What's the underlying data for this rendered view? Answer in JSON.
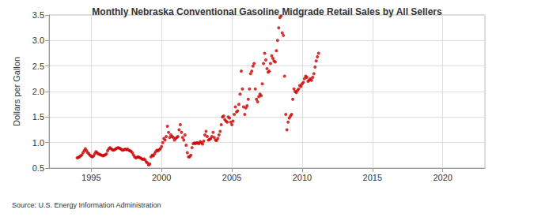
{
  "chart_data": {
    "type": "scatter",
    "title": "Monthly Nebraska Conventional Gasoline Midgrade Retail Sales by All Sellers",
    "y_label": "Dollars per Gallon",
    "source": "Source: U.S. Energy Information Administration",
    "color": "#cc0000",
    "marker": "circle",
    "grid": true,
    "xlim": [
      1992,
      2023
    ],
    "xticks": [
      1995,
      2000,
      2005,
      2010,
      2015,
      2020
    ],
    "ylim": [
      0.5,
      3.5
    ],
    "yticks": [
      0.5,
      {
        "value": 1,
        "label": "1.0"
      },
      1.5,
      {
        "value": 2,
        "label": "2.0"
      },
      2.5,
      {
        "value": 3,
        "label": "3.0"
      },
      3.5
    ],
    "x": [
      1994,
      1994.083,
      1994.167,
      1994.25,
      1994.333,
      1994.417,
      1994.5,
      1994.583,
      1994.667,
      1994.75,
      1994.833,
      1994.917,
      1995,
      1995.083,
      1995.167,
      1995.25,
      1995.333,
      1995.417,
      1995.5,
      1995.583,
      1995.667,
      1995.75,
      1995.833,
      1995.917,
      1996,
      1996.083,
      1996.167,
      1996.25,
      1996.333,
      1996.417,
      1996.5,
      1996.583,
      1996.667,
      1996.75,
      1996.833,
      1996.917,
      1997,
      1997.083,
      1997.167,
      1997.25,
      1997.333,
      1997.417,
      1997.5,
      1997.583,
      1997.667,
      1997.75,
      1997.833,
      1997.917,
      1998,
      1998.083,
      1998.167,
      1998.25,
      1998.333,
      1998.417,
      1998.5,
      1998.583,
      1998.667,
      1998.75,
      1998.833,
      1998.917,
      1999,
      1999.083,
      1999.167,
      1999.25,
      1999.333,
      1999.417,
      1999.5,
      1999.583,
      1999.667,
      1999.75,
      1999.833,
      1999.917,
      2000,
      2000.083,
      2000.167,
      2000.25,
      2000.333,
      2000.417,
      2000.5,
      2000.583,
      2000.667,
      2000.75,
      2000.833,
      2000.917,
      2001,
      2001.083,
      2001.167,
      2001.25,
      2001.333,
      2001.417,
      2001.5,
      2001.583,
      2001.667,
      2001.75,
      2001.833,
      2001.917,
      2002,
      2002.083,
      2002.167,
      2002.25,
      2002.333,
      2002.417,
      2002.5,
      2002.583,
      2002.667,
      2002.75,
      2002.833,
      2002.917,
      2003,
      2003.083,
      2003.167,
      2003.25,
      2003.333,
      2003.417,
      2003.5,
      2003.583,
      2003.667,
      2003.75,
      2003.833,
      2003.917,
      2004,
      2004.083,
      2004.167,
      2004.25,
      2004.333,
      2004.417,
      2004.5,
      2004.583,
      2004.667,
      2004.75,
      2004.833,
      2004.917,
      2005,
      2005.083,
      2005.167,
      2005.25,
      2005.333,
      2005.417,
      2005.5,
      2005.583,
      2005.667,
      2005.75,
      2005.833,
      2005.917,
      2006,
      2006.083,
      2006.167,
      2006.25,
      2006.333,
      2006.417,
      2006.5,
      2006.583,
      2006.667,
      2006.75,
      2006.833,
      2006.917,
      2007,
      2007.083,
      2007.167,
      2007.25,
      2007.333,
      2007.417,
      2007.5,
      2007.583,
      2007.667,
      2007.75,
      2007.833,
      2007.917,
      2008,
      2008.083,
      2008.167,
      2008.25,
      2008.333,
      2008.417,
      2008.5,
      2008.583,
      2008.667,
      2008.75,
      2008.833,
      2008.917,
      2009,
      2009.083,
      2009.167,
      2009.25,
      2009.333,
      2009.417,
      2009.5,
      2009.583,
      2009.667,
      2009.75,
      2009.833,
      2009.917,
      2010,
      2010.083,
      2010.167,
      2010.25,
      2010.333,
      2010.417,
      2010.5,
      2010.583,
      2010.667,
      2010.75,
      2010.833,
      2010.917,
      2011,
      2011.083,
      2011.167
    ],
    "values": [
      0.7,
      0.71,
      0.72,
      0.74,
      0.76,
      0.8,
      0.84,
      0.88,
      0.84,
      0.8,
      0.78,
      0.75,
      0.73,
      0.72,
      0.74,
      0.78,
      0.82,
      0.8,
      0.78,
      0.77,
      0.76,
      0.75,
      0.74,
      0.75,
      0.76,
      0.78,
      0.84,
      0.88,
      0.9,
      0.88,
      0.86,
      0.85,
      0.86,
      0.88,
      0.89,
      0.9,
      0.89,
      0.88,
      0.86,
      0.85,
      0.86,
      0.87,
      0.86,
      0.87,
      0.85,
      0.84,
      0.83,
      0.8,
      0.76,
      0.72,
      0.7,
      0.71,
      0.72,
      0.71,
      0.7,
      0.68,
      0.67,
      0.68,
      0.66,
      0.62,
      0.6,
      0.56,
      0.58,
      0.72,
      0.75,
      0.74,
      0.78,
      0.82,
      0.85,
      0.84,
      0.86,
      0.88,
      0.92,
      1.0,
      1.08,
      1.05,
      1.12,
      1.32,
      1.2,
      1.1,
      1.15,
      1.12,
      1.1,
      1.05,
      1.08,
      1.1,
      1.12,
      1.25,
      1.35,
      1.2,
      1.1,
      1.05,
      1.15,
      0.95,
      0.8,
      0.72,
      0.72,
      0.75,
      0.9,
      0.98,
      0.99,
      0.98,
      1.0,
      0.99,
      0.98,
      1.02,
      1.0,
      0.97,
      1.03,
      1.15,
      1.22,
      1.12,
      1.05,
      1.06,
      1.08,
      1.12,
      1.2,
      1.1,
      1.05,
      1.04,
      1.08,
      1.15,
      1.22,
      1.35,
      1.5,
      1.52,
      1.45,
      1.42,
      1.4,
      1.5,
      1.48,
      1.4,
      1.35,
      1.42,
      1.55,
      1.7,
      1.6,
      1.62,
      1.75,
      1.95,
      2.4,
      2.05,
      1.7,
      1.55,
      1.68,
      1.72,
      1.85,
      2.05,
      2.35,
      2.4,
      2.5,
      2.55,
      2.05,
      1.85,
      1.8,
      1.9,
      1.95,
      1.92,
      2.15,
      2.55,
      2.75,
      2.62,
      2.45,
      2.38,
      2.4,
      2.55,
      2.7,
      2.65,
      2.6,
      2.58,
      2.8,
      3.0,
      3.25,
      3.45,
      3.48,
      3.15,
      3.1,
      2.3,
      1.55,
      1.25,
      1.4,
      1.48,
      1.52,
      1.55,
      1.85,
      2.05,
      2.0,
      1.98,
      2.02,
      2.05,
      2.12,
      2.1,
      2.15,
      2.18,
      2.25,
      2.3,
      2.28,
      2.2,
      2.22,
      2.25,
      2.22,
      2.28,
      2.35,
      2.48,
      2.6,
      2.68,
      2.75
    ]
  }
}
